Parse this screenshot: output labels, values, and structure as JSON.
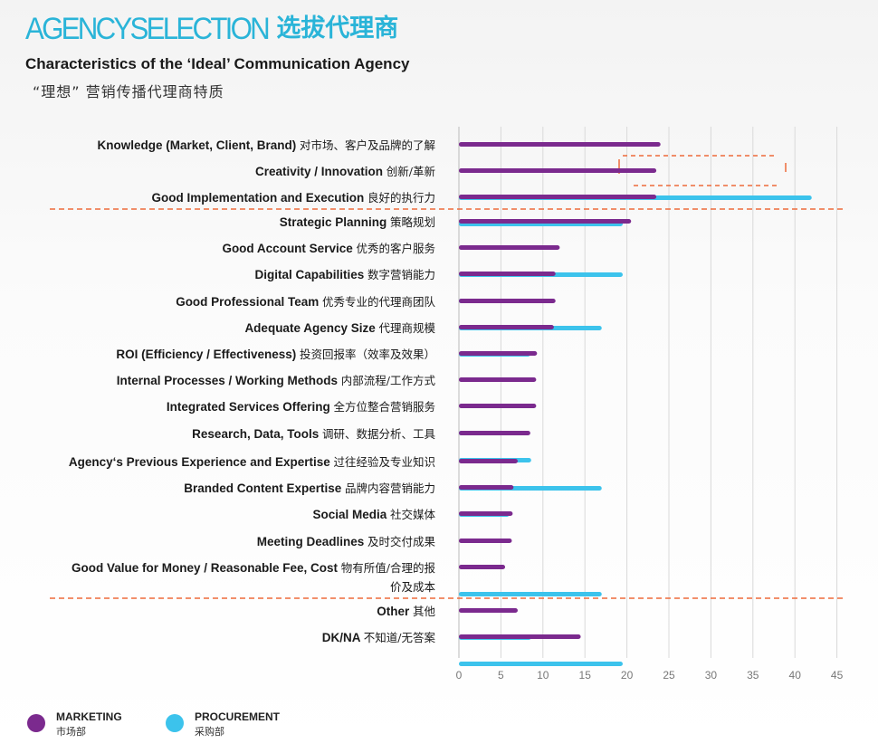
{
  "header": {
    "brand_en": "AGENCYSELECTION",
    "brand_cn": "选拔代理商",
    "title": "Characteristics of the ‘Ideal’ Communication Agency",
    "subtitle": "“理想”  营销传播代理商特质"
  },
  "colors": {
    "marketing": "#7b2a8e",
    "procurement": "#3cc3ec",
    "divider": "#ee6a3a",
    "grid": "#d9d9d9",
    "brand": "#2ab4d8"
  },
  "legend": {
    "marketing_en": "MARKETING",
    "marketing_cn": "市场部",
    "procurement_en": "PROCUREMENT",
    "procurement_cn": "采购部"
  },
  "chart_data": {
    "type": "bar",
    "orientation": "horizontal",
    "xlim": [
      0,
      45
    ],
    "xticks": [
      0,
      5,
      10,
      15,
      20,
      25,
      30,
      35,
      40,
      45
    ],
    "grid": true,
    "legend_placement": "bottom-left",
    "categories": [
      {
        "en": "Knowledge (Market, Client, Brand)",
        "cn": "对市场、客户及品牌的了解"
      },
      {
        "en": "Creativity / Innovation",
        "cn": "创新/革新"
      },
      {
        "en": "Good Implementation and Execution",
        "cn": "良好的执行力"
      },
      {
        "en": "Strategic Planning",
        "cn": "策略规划"
      },
      {
        "en": "Good Account Service",
        "cn": "优秀的客户服务"
      },
      {
        "en": "Digital Capabilities",
        "cn": "数字营销能力"
      },
      {
        "en": "Good Professional Team",
        "cn": "优秀专业的代理商团队"
      },
      {
        "en": "Adequate Agency Size",
        "cn": "代理商规模"
      },
      {
        "en": "ROI (Efficiency / Effectiveness)",
        "cn": "投资回报率（效率及效果）"
      },
      {
        "en": "Internal Processes / Working Methods",
        "cn": "内部流程/工作方式"
      },
      {
        "en": "Integrated Services Offering",
        "cn": "全方位整合营销服务"
      },
      {
        "en": "Research, Data, Tools",
        "cn": "调研、数据分析、工具"
      },
      {
        "en": "Agency‘s Previous Experience and Expertise",
        "cn": "过往经验及专业知识"
      },
      {
        "en": "Branded Content Expertise",
        "cn": "品牌内容营销能力"
      },
      {
        "en": "Social Media",
        "cn": "社交媒体"
      },
      {
        "en": "Meeting Deadlines",
        "cn": "及时交付成果"
      },
      {
        "en": "Good Value for Money / Reasonable Fee, Cost",
        "cn": "物有所值/合理的报",
        "cn2": "价及成本"
      },
      {
        "en": "Other",
        "cn": "其他"
      },
      {
        "en": "DK/NA",
        "cn": "不知道/无答案"
      }
    ],
    "series": [
      {
        "name": "MARKETING",
        "values": [
          24,
          23.5,
          23.5,
          20.5,
          12,
          11.5,
          11.5,
          11.3,
          9.3,
          9.2,
          9.2,
          8.5,
          7,
          6.5,
          6.4,
          6.3,
          5.5,
          7,
          14.5
        ]
      },
      {
        "name": "PROCUREMENT",
        "values": [
          0,
          42,
          19.5,
          0,
          19.5,
          8.5,
          17,
          8.5,
          0,
          0,
          3,
          8.6,
          17,
          6,
          0,
          0,
          17,
          8.6,
          19.5
        ]
      }
    ]
  }
}
